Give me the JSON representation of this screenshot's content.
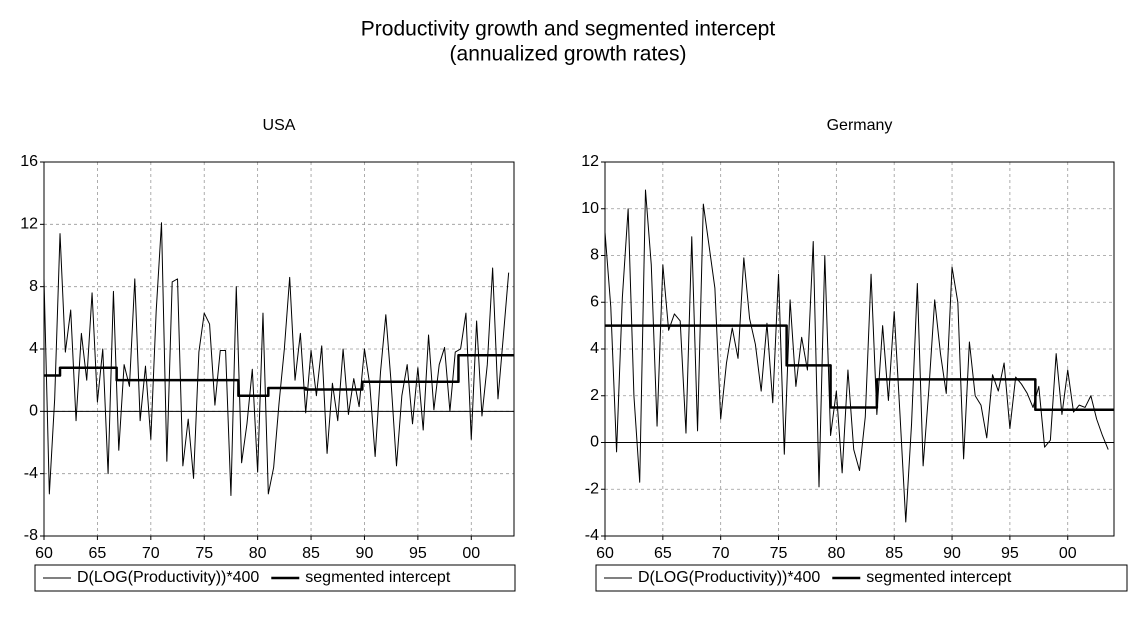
{
  "figure_title": "Productivity growth and segmented intercept",
  "figure_subtitle": "(annualized growth rates)",
  "chart_data": [
    {
      "type": "line",
      "title": "USA",
      "grid": true,
      "legend": "bottom",
      "xlim": [
        1960,
        2004
      ],
      "xticks": [
        {
          "value": 1960,
          "label": "60"
        },
        {
          "value": 1965,
          "label": "65"
        },
        {
          "value": 1970,
          "label": "70"
        },
        {
          "value": 1975,
          "label": "75"
        },
        {
          "value": 1980,
          "label": "80"
        },
        {
          "value": 1985,
          "label": "85"
        },
        {
          "value": 1990,
          "label": "90"
        },
        {
          "value": 1995,
          "label": "95"
        },
        {
          "value": 2000,
          "label": "00"
        }
      ],
      "ylim": [
        -8,
        16
      ],
      "yticks": [
        -8,
        -4,
        0,
        4,
        8,
        12,
        16
      ],
      "series": [
        {
          "name": "D(LOG(Productivity))*400",
          "color": "#000000",
          "line_width": 1,
          "x": [
            1960,
            1960.5,
            1961,
            1961.5,
            1962,
            1962.5,
            1963,
            1963.5,
            1964,
            1964.5,
            1965,
            1965.5,
            1966,
            1966.5,
            1967,
            1967.5,
            1968,
            1968.5,
            1969,
            1969.5,
            1970,
            1970.5,
            1971,
            1971.5,
            1972,
            1972.5,
            1973,
            1973.5,
            1974,
            1974.5,
            1975,
            1975.5,
            1976,
            1976.5,
            1977,
            1977.5,
            1978,
            1978.5,
            1979,
            1979.5,
            1980,
            1980.5,
            1981,
            1981.5,
            1982,
            1982.5,
            1983,
            1983.5,
            1984,
            1984.5,
            1985,
            1985.5,
            1986,
            1986.5,
            1987,
            1987.5,
            1988,
            1988.5,
            1989,
            1989.5,
            1990,
            1990.5,
            1991,
            1991.5,
            1992,
            1992.5,
            1993,
            1993.5,
            1994,
            1994.5,
            1995,
            1995.5,
            1996,
            1996.5,
            1997,
            1997.5,
            1998,
            1998.5,
            1999,
            1999.5,
            2000,
            2000.5,
            2001,
            2001.5,
            2002,
            2002.5,
            2003,
            2003.5
          ],
          "values": [
            8.5,
            -5.3,
            0.8,
            11.4,
            3.8,
            6.5,
            -0.6,
            5.0,
            2.0,
            7.6,
            0.6,
            4.0,
            -4.0,
            7.7,
            -2.5,
            3.0,
            1.6,
            8.5,
            -0.6,
            2.9,
            -1.8,
            6.4,
            12.1,
            -3.2,
            8.3,
            8.5,
            -3.5,
            -0.5,
            -4.3,
            3.8,
            6.3,
            5.6,
            0.4,
            3.9,
            3.9,
            -5.4,
            8.0,
            -3.3,
            -0.8,
            2.7,
            -3.9,
            6.3,
            -5.3,
            -3.6,
            0.5,
            4.0,
            8.6,
            2.0,
            5.0,
            -0.1,
            3.9,
            1.0,
            4.2,
            -2.7,
            1.8,
            -0.6,
            4.0,
            -0.2,
            2.1,
            0.3,
            4.0,
            1.7,
            -2.9,
            2.5,
            6.2,
            1.8,
            -3.5,
            1.0,
            3.0,
            -0.8,
            2.8,
            -1.2,
            4.9,
            0.1,
            3.0,
            4.1,
            0.0,
            3.8,
            4.0,
            6.3,
            -1.8,
            5.8,
            -0.3,
            3.0,
            9.2,
            0.8,
            4.8,
            8.9
          ]
        },
        {
          "name": "segmented intercept",
          "color": "#000000",
          "line_width": 2.5,
          "x": [
            1960,
            1961.5,
            1961.5,
            1966.8,
            1966.8,
            1978.2,
            1978.2,
            1981,
            1981,
            1984.5,
            1984.5,
            1989.8,
            1989.8,
            1998.8,
            1998.8,
            2004
          ],
          "values": [
            2.3,
            2.3,
            2.8,
            2.8,
            2.0,
            2.0,
            1.0,
            1.0,
            1.5,
            1.5,
            1.4,
            1.4,
            1.9,
            1.9,
            3.6,
            3.6
          ]
        }
      ]
    },
    {
      "type": "line",
      "title": "Germany",
      "grid": true,
      "legend": "bottom",
      "xlim": [
        1960,
        2004
      ],
      "xticks": [
        {
          "value": 1960,
          "label": "60"
        },
        {
          "value": 1965,
          "label": "65"
        },
        {
          "value": 1970,
          "label": "70"
        },
        {
          "value": 1975,
          "label": "75"
        },
        {
          "value": 1980,
          "label": "80"
        },
        {
          "value": 1985,
          "label": "85"
        },
        {
          "value": 1990,
          "label": "90"
        },
        {
          "value": 1995,
          "label": "95"
        },
        {
          "value": 2000,
          "label": "00"
        }
      ],
      "ylim": [
        -4,
        12
      ],
      "yticks": [
        -4,
        -2,
        0,
        2,
        4,
        6,
        8,
        10,
        12
      ],
      "series": [
        {
          "name": "D(LOG(Productivity))*400",
          "color": "#000000",
          "line_width": 1,
          "x": [
            1960,
            1960.5,
            1961,
            1961.5,
            1962,
            1962.5,
            1963,
            1963.5,
            1964,
            1964.5,
            1965,
            1965.5,
            1966,
            1966.5,
            1967,
            1967.5,
            1968,
            1968.5,
            1969,
            1969.5,
            1970,
            1970.5,
            1971,
            1971.5,
            1972,
            1972.5,
            1973,
            1973.5,
            1974,
            1974.5,
            1975,
            1975.5,
            1976,
            1976.5,
            1977,
            1977.5,
            1978,
            1978.5,
            1979,
            1979.5,
            1980,
            1980.5,
            1981,
            1981.5,
            1982,
            1982.5,
            1983,
            1983.5,
            1984,
            1984.5,
            1985,
            1985.5,
            1986,
            1986.5,
            1987,
            1987.5,
            1988,
            1988.5,
            1989,
            1989.5,
            1990,
            1990.5,
            1991,
            1991.5,
            1992,
            1992.5,
            1993,
            1993.5,
            1994,
            1994.5,
            1995,
            1995.5,
            1996,
            1996.5,
            1997,
            1997.5,
            1998,
            1998.5,
            1999,
            1999.5,
            2000,
            2000.5,
            2001,
            2001.5,
            2002,
            2002.5,
            2003,
            2003.5
          ],
          "values": [
            9.0,
            5.8,
            -0.4,
            6.2,
            10.0,
            2.0,
            -1.7,
            10.8,
            7.6,
            0.7,
            7.6,
            4.8,
            5.5,
            5.2,
            0.4,
            8.8,
            0.5,
            10.2,
            8.4,
            6.6,
            1.0,
            3.4,
            4.9,
            3.6,
            7.9,
            5.3,
            4.2,
            2.2,
            5.1,
            1.7,
            7.2,
            -0.5,
            6.1,
            2.4,
            4.5,
            3.1,
            8.6,
            -1.9,
            8.0,
            0.3,
            2.2,
            -1.3,
            3.1,
            -0.3,
            -1.2,
            1.1,
            7.2,
            1.2,
            5.0,
            1.8,
            5.6,
            1.2,
            -3.4,
            0.8,
            6.8,
            -1.0,
            2.3,
            6.1,
            3.8,
            2.1,
            7.5,
            6.0,
            -0.7,
            4.3,
            2.0,
            1.6,
            0.2,
            2.9,
            2.2,
            3.4,
            0.6,
            2.8,
            2.5,
            2.1,
            1.5,
            2.4,
            -0.2,
            0.1,
            3.8,
            1.2,
            3.1,
            1.3,
            1.6,
            1.5,
            2.0,
            1.0,
            0.3,
            -0.3
          ]
        },
        {
          "name": "segmented intercept",
          "color": "#000000",
          "line_width": 2.5,
          "x": [
            1960,
            1975.7,
            1975.7,
            1979.5,
            1979.5,
            1983.5,
            1983.5,
            1997.2,
            1997.2,
            2004
          ],
          "values": [
            5.0,
            5.0,
            3.3,
            3.3,
            1.5,
            1.5,
            2.7,
            2.7,
            1.4,
            1.4
          ]
        }
      ]
    }
  ]
}
